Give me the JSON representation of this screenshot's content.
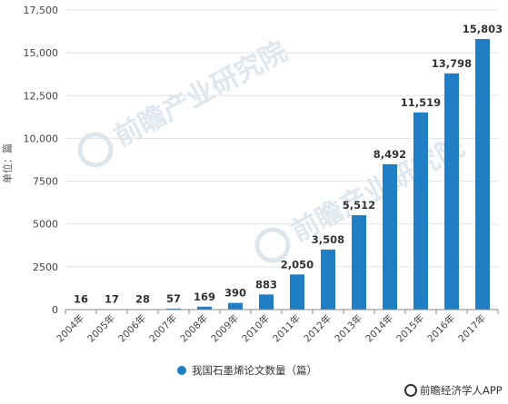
{
  "chart_data": {
    "type": "bar",
    "title": "",
    "xlabel": "",
    "ylabel": "单位：篇",
    "ylim": [
      0,
      17500
    ],
    "yticks": [
      0,
      2500,
      5000,
      7500,
      10000,
      12500,
      15000,
      17500
    ],
    "ytick_labels": [
      "0",
      "2500",
      "5000",
      "7500",
      "10,000",
      "12,500",
      "15,000",
      "17,500"
    ],
    "categories": [
      "2004年",
      "2005年",
      "2006年",
      "2007年",
      "2008年",
      "2009年",
      "2010年",
      "2011年",
      "2012年",
      "2013年",
      "2014年",
      "2015年",
      "2016年",
      "2017年"
    ],
    "series": [
      {
        "name": "我国石墨烯论文数量（篇）",
        "color": "#1f7ec4",
        "values": [
          16,
          17,
          28,
          57,
          169,
          390,
          883,
          2050,
          3508,
          5512,
          8492,
          11519,
          13798,
          15803
        ],
        "labels": [
          "16",
          "17",
          "28",
          "57",
          "169",
          "390",
          "883",
          "2,050",
          "3,508",
          "5,512",
          "8,492",
          "11,519",
          "13,798",
          "15,803"
        ]
      }
    ],
    "grid": true,
    "legend": "bottom"
  },
  "source": {
    "icon": "qianzhan-logo-icon",
    "text": "前瞻经济学人APP"
  },
  "watermark": {
    "text": "前瞻产业研究院",
    "icon": "qianzhan-logo-icon"
  },
  "colors": {
    "bar": "#1f7ec4",
    "grid": "#e3e3e3",
    "axis": "#888888"
  }
}
